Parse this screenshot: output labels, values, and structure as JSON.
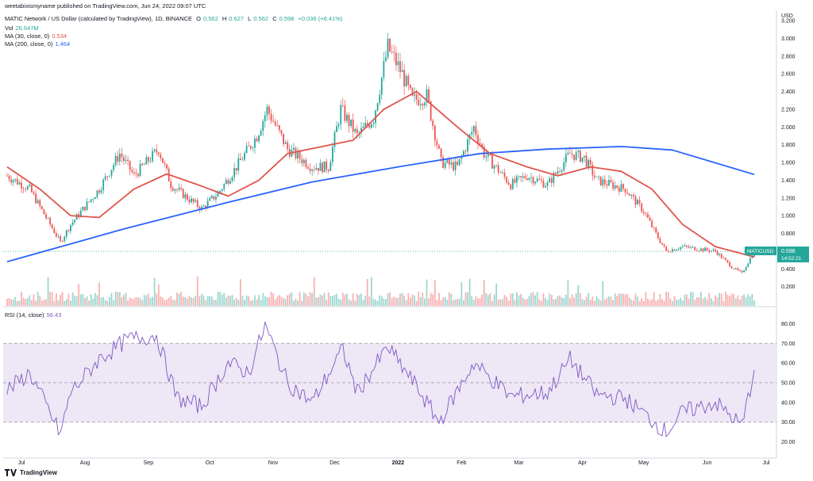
{
  "header": {
    "published_line": "weetabixismyname published on TradingView.com, Jun 24, 2022 09:07 UTC",
    "symbol_line": "MATIC Network / US Dollar (calculated by TradingView), 1D, BINANCE",
    "o_label": "O",
    "o_val": "0.562",
    "h_label": "H",
    "h_val": "0.627",
    "l_label": "L",
    "l_val": "0.562",
    "c_label": "C",
    "c_val": "0.598",
    "change": "+0.036 (+6.41%)",
    "vol_label": "Vol",
    "vol_val": "26.647M",
    "ma30_label": "MA (30, close, 0)",
    "ma30_val": "0.534",
    "ma200_label": "MA (200, close, 0)",
    "ma200_val": "1.464",
    "rsi_label": "RSI (14, close)",
    "rsi_val": "56.43"
  },
  "price_axis": {
    "unit": "USD",
    "ticks": [
      "3.200",
      "3.000",
      "2.800",
      "2.600",
      "2.400",
      "2.200",
      "2.000",
      "1.800",
      "1.600",
      "1.400",
      "1.200",
      "1.000",
      "0.800",
      "0.600",
      "0.400",
      "0.200"
    ]
  },
  "rsi_axis": {
    "ticks": [
      "80.00",
      "70.00",
      "60.00",
      "50.00",
      "40.00",
      "30.00",
      "20.00"
    ]
  },
  "time_axis": {
    "ticks": [
      "Jul",
      "Aug",
      "Sep",
      "Oct",
      "Nov",
      "Dec",
      "2022",
      "Feb",
      "Mar",
      "Apr",
      "May",
      "Jun",
      "Jul"
    ]
  },
  "last_price_tag": {
    "symbol": "MATICUSD",
    "price": "0.598",
    "countdown": "14:52:21"
  },
  "brand": {
    "name": "TradingView"
  },
  "colors": {
    "up": "#26a69a",
    "down": "#ef5350",
    "ma30": "#e0554c",
    "ma200": "#2962ff",
    "rsi": "#7e57c2",
    "rsi_band": "#ede7f6"
  },
  "chart_data": {
    "type": "candlestick",
    "x_range": [
      "2021-06-24",
      "2022-06-24"
    ],
    "y_range": [
      0.0,
      3.2
    ],
    "rsi_range": [
      15,
      85
    ],
    "rsi_bands": [
      30,
      50,
      70
    ],
    "price_keypoints": [
      [
        "2021-06-24",
        1.45
      ],
      [
        "2021-07-05",
        1.3
      ],
      [
        "2021-07-20",
        0.7
      ],
      [
        "2021-07-25",
        0.9
      ],
      [
        "2021-08-08",
        1.3
      ],
      [
        "2021-08-18",
        1.7
      ],
      [
        "2021-08-25",
        1.45
      ],
      [
        "2021-09-06",
        1.75
      ],
      [
        "2021-09-12",
        1.35
      ],
      [
        "2021-09-20",
        1.2
      ],
      [
        "2021-09-27",
        1.08
      ],
      [
        "2021-10-05",
        1.25
      ],
      [
        "2021-10-14",
        1.55
      ],
      [
        "2021-10-24",
        1.9
      ],
      [
        "2021-10-29",
        2.2
      ],
      [
        "2021-11-08",
        1.75
      ],
      [
        "2021-11-20",
        1.55
      ],
      [
        "2021-11-28",
        1.55
      ],
      [
        "2021-12-04",
        2.2
      ],
      [
        "2021-12-12",
        1.9
      ],
      [
        "2021-12-20",
        2.1
      ],
      [
        "2021-12-27",
        2.9
      ],
      [
        "2022-01-03",
        2.6
      ],
      [
        "2022-01-08",
        2.3
      ],
      [
        "2022-01-15",
        2.35
      ],
      [
        "2022-01-22",
        1.6
      ],
      [
        "2022-01-30",
        1.55
      ],
      [
        "2022-02-07",
        2.0
      ],
      [
        "2022-02-12",
        1.7
      ],
      [
        "2022-02-25",
        1.35
      ],
      [
        "2022-03-05",
        1.45
      ],
      [
        "2022-03-15",
        1.35
      ],
      [
        "2022-03-26",
        1.7
      ],
      [
        "2022-04-02",
        1.65
      ],
      [
        "2022-04-08",
        1.4
      ],
      [
        "2022-04-22",
        1.3
      ],
      [
        "2022-05-01",
        1.05
      ],
      [
        "2022-05-08",
        0.75
      ],
      [
        "2022-05-12",
        0.6
      ],
      [
        "2022-05-20",
        0.65
      ],
      [
        "2022-06-05",
        0.6
      ],
      [
        "2022-06-13",
        0.42
      ],
      [
        "2022-06-18",
        0.35
      ],
      [
        "2022-06-24",
        0.6
      ]
    ],
    "ma30_keypoints": [
      [
        "2021-06-24",
        1.55
      ],
      [
        "2021-07-10",
        1.3
      ],
      [
        "2021-07-25",
        1.0
      ],
      [
        "2021-08-08",
        0.98
      ],
      [
        "2021-08-25",
        1.3
      ],
      [
        "2021-09-10",
        1.47
      ],
      [
        "2021-09-25",
        1.35
      ],
      [
        "2021-10-10",
        1.22
      ],
      [
        "2021-10-25",
        1.4
      ],
      [
        "2021-11-08",
        1.7
      ],
      [
        "2021-11-25",
        1.78
      ],
      [
        "2021-12-10",
        1.85
      ],
      [
        "2021-12-25",
        2.2
      ],
      [
        "2022-01-10",
        2.4
      ],
      [
        "2022-01-30",
        2.0
      ],
      [
        "2022-02-15",
        1.7
      ],
      [
        "2022-03-05",
        1.55
      ],
      [
        "2022-03-20",
        1.45
      ],
      [
        "2022-04-05",
        1.55
      ],
      [
        "2022-04-20",
        1.5
      ],
      [
        "2022-05-05",
        1.3
      ],
      [
        "2022-05-20",
        0.9
      ],
      [
        "2022-06-05",
        0.65
      ],
      [
        "2022-06-24",
        0.534
      ]
    ],
    "ma200_keypoints": [
      [
        "2021-06-24",
        0.48
      ],
      [
        "2021-08-20",
        0.85
      ],
      [
        "2021-10-10",
        1.15
      ],
      [
        "2021-11-20",
        1.38
      ],
      [
        "2022-01-01",
        1.55
      ],
      [
        "2022-02-10",
        1.7
      ],
      [
        "2022-03-15",
        1.75
      ],
      [
        "2022-04-20",
        1.78
      ],
      [
        "2022-05-15",
        1.74
      ],
      [
        "2022-06-24",
        1.464
      ]
    ],
    "rsi_keypoints": [
      [
        "2021-06-24",
        46
      ],
      [
        "2021-07-05",
        55
      ],
      [
        "2021-07-20",
        24
      ],
      [
        "2021-07-25",
        45
      ],
      [
        "2021-08-08",
        62
      ],
      [
        "2021-08-22",
        72
      ],
      [
        "2021-09-05",
        74
      ],
      [
        "2021-09-15",
        42
      ],
      [
        "2021-09-27",
        38
      ],
      [
        "2021-10-10",
        60
      ],
      [
        "2021-10-20",
        55
      ],
      [
        "2021-10-28",
        79
      ],
      [
        "2021-11-08",
        50
      ],
      [
        "2021-11-20",
        40
      ],
      [
        "2021-12-05",
        67
      ],
      [
        "2021-12-12",
        45
      ],
      [
        "2021-12-27",
        68
      ],
      [
        "2022-01-10",
        48
      ],
      [
        "2022-01-21",
        30
      ],
      [
        "2022-02-07",
        60
      ],
      [
        "2022-02-25",
        43
      ],
      [
        "2022-03-15",
        45
      ],
      [
        "2022-03-26",
        62
      ],
      [
        "2022-04-08",
        44
      ],
      [
        "2022-04-22",
        42
      ],
      [
        "2022-05-12",
        25
      ],
      [
        "2022-05-20",
        35
      ],
      [
        "2022-06-05",
        40
      ],
      [
        "2022-06-18",
        28
      ],
      [
        "2022-06-24",
        56.43
      ]
    ]
  }
}
